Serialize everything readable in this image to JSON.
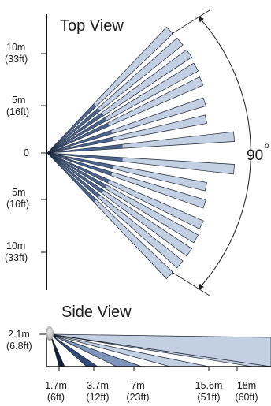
{
  "top_view": {
    "title": "Top View",
    "y_labels": [
      {
        "value": "10m",
        "sub": "(33ft)"
      },
      {
        "value": "5m",
        "sub": "(16ft)"
      },
      {
        "value": "0",
        "sub": ""
      },
      {
        "value": "5m",
        "sub": "(16ft)"
      },
      {
        "value": "10m",
        "sub": "(33ft)"
      }
    ],
    "angle": "90",
    "angle_unit": "o"
  },
  "side_view": {
    "title": "Side View",
    "height_label": "2.1m",
    "height_sub": "(6.8ft)",
    "distances": [
      {
        "value": "1.7m",
        "sub": "(6ft)"
      },
      {
        "value": "3.7m",
        "sub": "(12ft)"
      },
      {
        "value": "7m",
        "sub": "(23ft)"
      },
      {
        "value": "15.6m",
        "sub": "(51ft)"
      },
      {
        "value": "18m",
        "sub": "(60ft)"
      }
    ]
  },
  "colors": {
    "beam_light": "#c3cfe3",
    "beam_mid": "#7d95ba",
    "beam_dark": "#2f4a74",
    "beam_darkest": "#14243f",
    "outline": "#1b2230"
  }
}
